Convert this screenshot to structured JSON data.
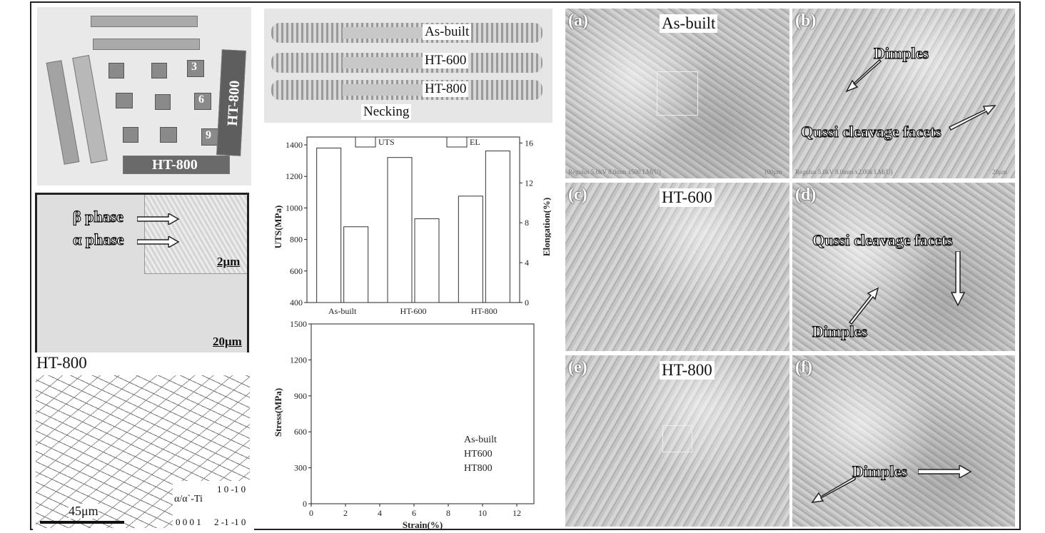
{
  "samples_photo": {
    "bar_label": "HT-800",
    "side_label": "HT-800",
    "cube_numbers": [
      "3",
      "6",
      "9"
    ]
  },
  "microstructure": {
    "beta_label": "β phase",
    "alpha_label": "α phase",
    "inset_scale": "2μm",
    "main_scale": "20μm"
  },
  "ebsd": {
    "title": "HT-800",
    "scale": "45μm",
    "phase": "α/α`-Ti",
    "ipf_top": "1 0 -1 0",
    "ipf_left": "0 0 0 1",
    "ipf_right": "2 -1 -1 0"
  },
  "tensile_photo": {
    "labels": [
      "As-built",
      "HT-600",
      "HT-800"
    ],
    "necking": "Necking"
  },
  "uts_chart_text": {
    "ylabel_left": "UTS(MPa)",
    "ylabel_right": "Elongation(%)",
    "legend_uts": "UTS",
    "legend_el": "EL"
  },
  "stress_chart_text": {
    "ylabel": "Stress(MPa)",
    "xlabel": "Strain(%)",
    "legend": [
      "As-built",
      "HT600",
      "HT800"
    ]
  },
  "fracture": {
    "a": {
      "letter": "(a)",
      "title": "As-built",
      "footer": "Regulus 5.0kV 8.0mm x500 LM(U)",
      "scale": "100μm"
    },
    "b": {
      "letter": "(b)",
      "ann1": "Dimples",
      "ann2": "Qussi cleavage facets",
      "footer": "Regulus 5.0kV 8.0mm x2.00k LM(U)",
      "scale": "20μm"
    },
    "c": {
      "letter": "(c)",
      "title": "HT-600"
    },
    "d": {
      "letter": "(d)",
      "ann1": "Qussi cleavage facets",
      "ann2": "Dimples"
    },
    "e": {
      "letter": "(e)",
      "title": "HT-800"
    },
    "f": {
      "letter": "(f)",
      "ann1": "Dimples"
    }
  },
  "chart_data": [
    {
      "type": "bar",
      "categories": [
        "As-built",
        "HT-600",
        "HT-800"
      ],
      "series": [
        {
          "name": "UTS",
          "axis": "left",
          "values": [
            1380,
            1320,
            1075
          ]
        },
        {
          "name": "EL",
          "axis": "right",
          "values": [
            7.6,
            8.4,
            15.2
          ]
        }
      ],
      "ylabel": "UTS(MPa)",
      "y2label": "Elongation(%)",
      "ylim": [
        400,
        1450
      ],
      "y2lim": [
        0,
        16.6
      ],
      "yticks": [
        400,
        600,
        800,
        1000,
        1200,
        1400
      ],
      "y2ticks": [
        0,
        4,
        8,
        12,
        16
      ]
    },
    {
      "type": "line",
      "series": [
        {
          "name": "As-built",
          "values": []
        },
        {
          "name": "HT600",
          "values": []
        },
        {
          "name": "HT800",
          "values": []
        }
      ],
      "xlabel": "Strain(%)",
      "ylabel": "Stress(MPa)",
      "xlim": [
        0,
        13
      ],
      "ylim": [
        0,
        1500
      ],
      "xticks": [
        0,
        2,
        4,
        6,
        8,
        10,
        12
      ],
      "yticks": [
        0,
        300,
        600,
        900,
        1200,
        1500
      ]
    }
  ]
}
